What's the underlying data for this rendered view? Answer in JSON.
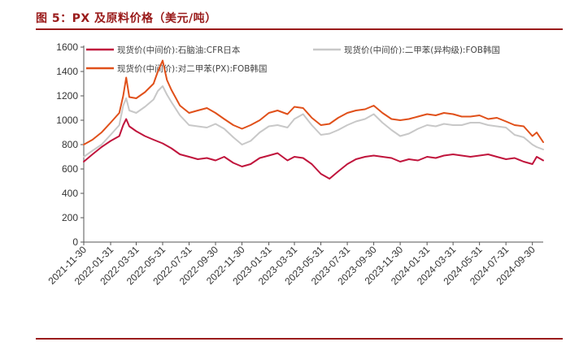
{
  "figure": {
    "title": "图 5：PX 及原料价格（美元/吨）"
  },
  "colors": {
    "naphtha": "#c0143c",
    "mx": "#c8c8c8",
    "px": "#e0501a",
    "accent": "#9a1b1b"
  },
  "chart_data": {
    "type": "line",
    "title": "",
    "xlabel": "",
    "ylabel": "",
    "ylim": [
      0,
      1600
    ],
    "yticks": [
      0,
      200,
      400,
      600,
      800,
      1000,
      1200,
      1400,
      1600
    ],
    "xlim": [
      "2021-11-30",
      "2024-10-25"
    ],
    "xticks": [
      "2021-11-30",
      "2022-01-31",
      "2022-03-31",
      "2022-05-31",
      "2022-07-31",
      "2022-09-30",
      "2022-11-30",
      "2023-01-31",
      "2023-03-31",
      "2023-05-31",
      "2023-07-31",
      "2023-09-30",
      "2023-11-30",
      "2024-01-31",
      "2024-03-31",
      "2024-05-31",
      "2024-07-31",
      "2024-09-30"
    ],
    "grid": false,
    "legend_position": "top",
    "series": [
      {
        "name": "现货价(中间价):石脑油:CFR日本",
        "color": "#c0143c",
        "x": [
          "2021-11-30",
          "2021-12-20",
          "2022-01-10",
          "2022-01-31",
          "2022-02-20",
          "2022-03-01",
          "2022-03-08",
          "2022-03-15",
          "2022-03-31",
          "2022-04-20",
          "2022-05-10",
          "2022-05-31",
          "2022-06-20",
          "2022-07-10",
          "2022-07-31",
          "2022-08-20",
          "2022-09-10",
          "2022-09-30",
          "2022-10-20",
          "2022-11-10",
          "2022-11-30",
          "2022-12-20",
          "2023-01-10",
          "2023-01-31",
          "2023-02-20",
          "2023-03-15",
          "2023-03-31",
          "2023-04-20",
          "2023-05-10",
          "2023-05-31",
          "2023-06-20",
          "2023-07-10",
          "2023-07-31",
          "2023-08-20",
          "2023-09-10",
          "2023-09-30",
          "2023-10-20",
          "2023-11-10",
          "2023-11-30",
          "2023-12-20",
          "2024-01-10",
          "2024-01-31",
          "2024-02-20",
          "2024-03-10",
          "2024-03-31",
          "2024-04-20",
          "2024-05-10",
          "2024-05-31",
          "2024-06-20",
          "2024-07-10",
          "2024-07-31",
          "2024-08-20",
          "2024-09-10",
          "2024-09-30",
          "2024-10-10",
          "2024-10-25"
        ],
        "values": [
          660,
          720,
          780,
          830,
          870,
          960,
          1010,
          950,
          910,
          870,
          840,
          810,
          770,
          720,
          700,
          680,
          690,
          670,
          700,
          650,
          620,
          640,
          690,
          710,
          730,
          670,
          700,
          690,
          640,
          560,
          520,
          580,
          640,
          680,
          700,
          710,
          700,
          690,
          660,
          680,
          670,
          700,
          690,
          710,
          720,
          710,
          700,
          710,
          720,
          700,
          680,
          690,
          660,
          640,
          700,
          670
        ]
      },
      {
        "name": "现货价(中间价):二甲苯(异构级):FOB韩国",
        "color": "#c8c8c8",
        "x": [
          "2021-11-30",
          "2021-12-20",
          "2022-01-10",
          "2022-01-31",
          "2022-02-20",
          "2022-03-01",
          "2022-03-08",
          "2022-03-15",
          "2022-03-31",
          "2022-04-20",
          "2022-05-10",
          "2022-05-20",
          "2022-05-31",
          "2022-06-10",
          "2022-06-20",
          "2022-07-10",
          "2022-07-31",
          "2022-08-20",
          "2022-09-10",
          "2022-09-30",
          "2022-10-20",
          "2022-11-10",
          "2022-11-30",
          "2022-12-20",
          "2023-01-10",
          "2023-01-31",
          "2023-02-20",
          "2023-03-15",
          "2023-03-31",
          "2023-04-20",
          "2023-05-10",
          "2023-05-31",
          "2023-06-20",
          "2023-07-10",
          "2023-07-31",
          "2023-08-20",
          "2023-09-10",
          "2023-09-30",
          "2023-10-20",
          "2023-11-10",
          "2023-11-30",
          "2023-12-20",
          "2024-01-10",
          "2024-01-31",
          "2024-02-20",
          "2024-03-10",
          "2024-03-31",
          "2024-04-20",
          "2024-05-10",
          "2024-05-31",
          "2024-06-20",
          "2024-07-10",
          "2024-07-31",
          "2024-08-20",
          "2024-09-10",
          "2024-09-30",
          "2024-10-10",
          "2024-10-25"
        ],
        "values": [
          700,
          750,
          800,
          880,
          960,
          1120,
          1180,
          1080,
          1060,
          1110,
          1170,
          1240,
          1280,
          1210,
          1150,
          1040,
          960,
          950,
          940,
          970,
          930,
          860,
          800,
          830,
          900,
          950,
          960,
          940,
          1010,
          1050,
          960,
          880,
          890,
          920,
          960,
          990,
          1010,
          1050,
          980,
          920,
          870,
          890,
          930,
          960,
          950,
          970,
          960,
          960,
          980,
          980,
          960,
          950,
          940,
          880,
          860,
          800,
          780,
          760
        ]
      },
      {
        "name": "现货价(中间价):对二甲苯(PX):FOB韩国",
        "color": "#e0501a",
        "x": [
          "2021-11-30",
          "2021-12-20",
          "2022-01-10",
          "2022-01-31",
          "2022-02-20",
          "2022-03-01",
          "2022-03-08",
          "2022-03-15",
          "2022-03-31",
          "2022-04-20",
          "2022-05-10",
          "2022-05-20",
          "2022-05-31",
          "2022-06-10",
          "2022-06-20",
          "2022-07-10",
          "2022-07-31",
          "2022-08-20",
          "2022-09-10",
          "2022-09-30",
          "2022-10-20",
          "2022-11-10",
          "2022-11-30",
          "2022-12-20",
          "2023-01-10",
          "2023-01-31",
          "2023-02-20",
          "2023-03-15",
          "2023-03-31",
          "2023-04-20",
          "2023-05-10",
          "2023-05-31",
          "2023-06-20",
          "2023-07-10",
          "2023-07-31",
          "2023-08-20",
          "2023-09-10",
          "2023-09-30",
          "2023-10-20",
          "2023-11-10",
          "2023-11-30",
          "2023-12-20",
          "2024-01-10",
          "2024-01-31",
          "2024-02-20",
          "2024-03-10",
          "2024-03-31",
          "2024-04-20",
          "2024-05-10",
          "2024-05-31",
          "2024-06-20",
          "2024-07-10",
          "2024-07-31",
          "2024-08-20",
          "2024-09-10",
          "2024-09-30",
          "2024-10-10",
          "2024-10-25"
        ],
        "values": [
          800,
          840,
          900,
          980,
          1060,
          1200,
          1350,
          1190,
          1180,
          1230,
          1300,
          1400,
          1490,
          1330,
          1250,
          1120,
          1060,
          1080,
          1100,
          1060,
          1010,
          960,
          930,
          960,
          1000,
          1060,
          1080,
          1050,
          1110,
          1100,
          1020,
          960,
          970,
          1020,
          1060,
          1080,
          1090,
          1120,
          1060,
          1010,
          1000,
          1010,
          1030,
          1050,
          1040,
          1060,
          1050,
          1030,
          1030,
          1040,
          1010,
          1020,
          990,
          960,
          950,
          870,
          900,
          820
        ]
      }
    ]
  }
}
